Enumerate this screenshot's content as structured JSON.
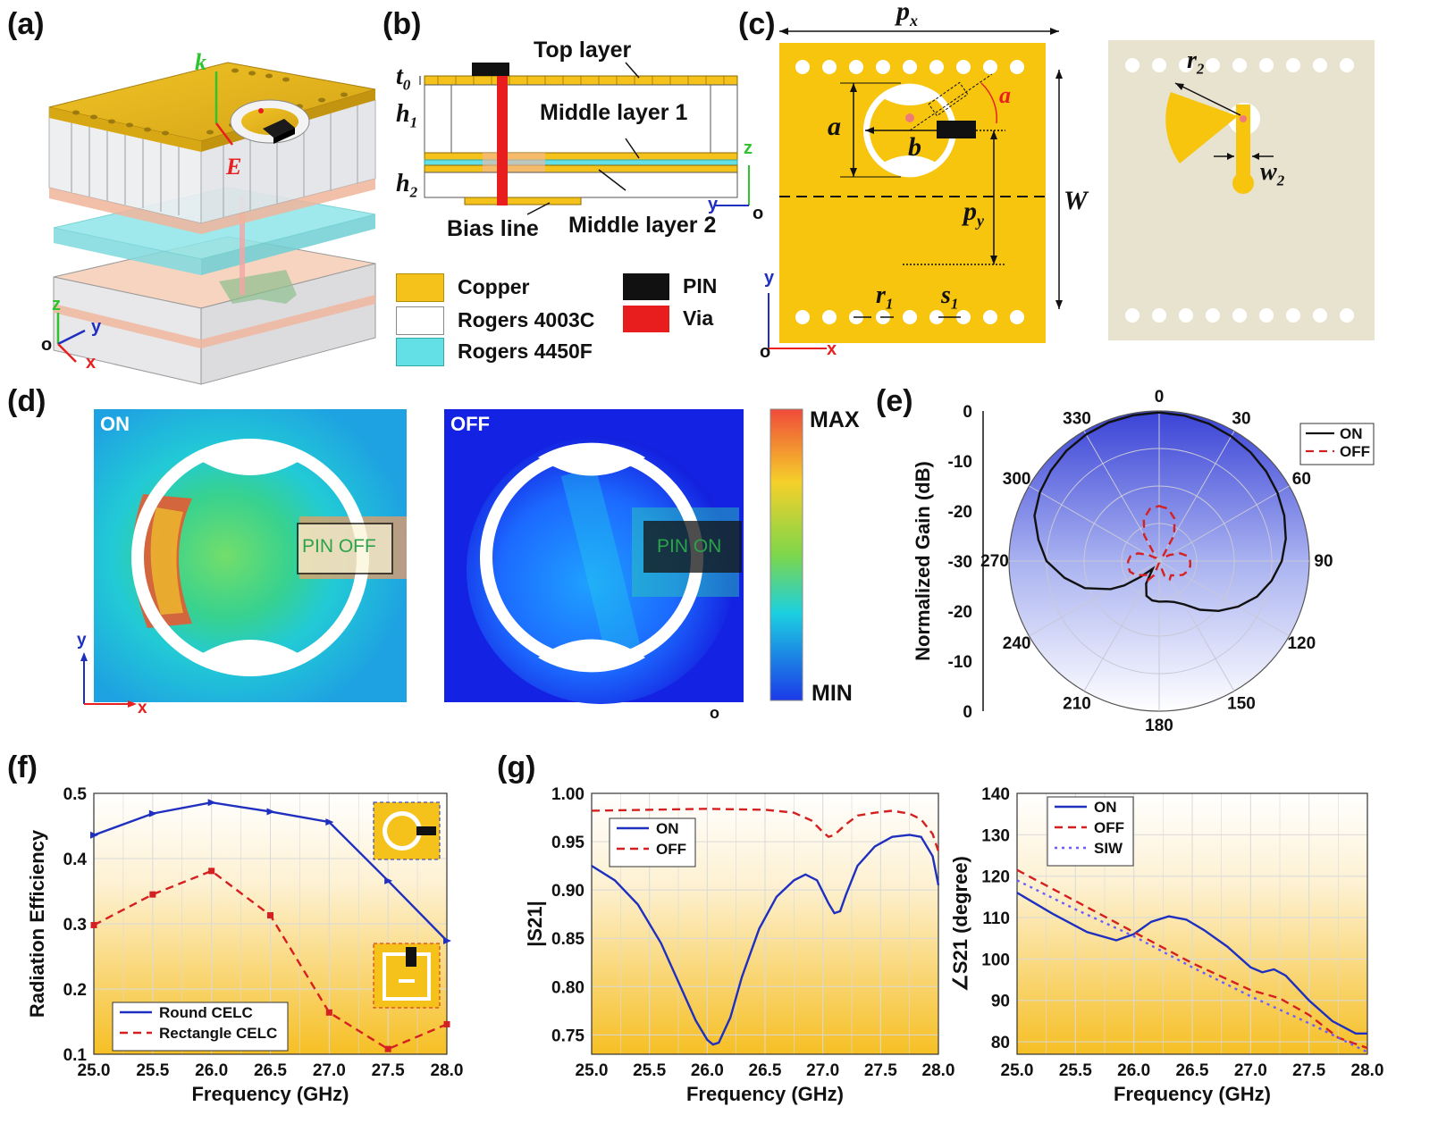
{
  "panels": {
    "a": "(a)",
    "b": "(b)",
    "c": "(c)",
    "d": "(d)",
    "e": "(e)",
    "f": "(f)",
    "g": "(g)"
  },
  "colors": {
    "copper": "#f5c21b",
    "rogers4003c": "#ffffff",
    "rogers4450f": "#63e0e6",
    "pin": "#111111",
    "via": "#e81d1d",
    "blue": "#1f2fbf",
    "red": "#d42020"
  },
  "panel_a": {
    "k": "k",
    "E": "E",
    "axis_z": "z",
    "axis_y": "y",
    "axis_x": "x",
    "origin": "o"
  },
  "panel_b": {
    "top_layer": "Top layer",
    "middle1": "Middle layer 1",
    "middle2": "Middle  layer 2",
    "bias": "Bias line",
    "t0": "t",
    "t0_sub": "0",
    "h1": "h",
    "h1_sub": "1",
    "h2": "h",
    "h2_sub": "2",
    "axis_z": "z",
    "axis_y": "y",
    "origin": "o",
    "legend": [
      {
        "label": "Copper",
        "color": "#f5c21b"
      },
      {
        "label": "Rogers 4003C",
        "color": "#ffffff"
      },
      {
        "label": "Rogers 4450F",
        "color": "#63e0e6"
      },
      {
        "label": "PIN",
        "color": "#111111"
      },
      {
        "label": "Via",
        "color": "#e81d1d"
      }
    ]
  },
  "panel_c": {
    "px": "p",
    "px_sub": "x",
    "py": "p",
    "py_sub": "y",
    "a": "a",
    "b": "b",
    "alpha": "a",
    "W": "W",
    "r1": "r",
    "r1_sub": "1",
    "s1": "s",
    "s1_sub": "1",
    "r2": "r",
    "r2_sub": "2",
    "w2": "w",
    "w2_sub": "2",
    "axis_y": "y",
    "axis_x": "x",
    "origin": "o"
  },
  "panel_d": {
    "on": "ON",
    "off": "OFF",
    "pin_off": "PIN OFF",
    "pin_on": "PIN ON",
    "max": "MAX",
    "min": "MIN",
    "axis_y": "y",
    "axis_x": "x",
    "origin": "o"
  },
  "chart_data": [
    {
      "id": "e",
      "type": "line",
      "coordinate": "polar",
      "ylabel": "Normalized Gain (dB)",
      "radial_ticks_top": [
        "0",
        "-10",
        "-20",
        "-30"
      ],
      "radial_ticks_bottom": [
        "-20",
        "-10",
        "0"
      ],
      "angle_labels": [
        "0",
        "30",
        "60",
        "90",
        "120",
        "150",
        "180",
        "210",
        "240",
        "270",
        "300",
        "330"
      ],
      "rlim_db": [
        -30,
        0
      ],
      "series": [
        {
          "name": "ON",
          "style": "solid",
          "color": "#111111",
          "theta": [
            0,
            10,
            20,
            30,
            40,
            50,
            60,
            70,
            80,
            90,
            100,
            110,
            120,
            130,
            140,
            150,
            160,
            170,
            180,
            190,
            200,
            210,
            220,
            230,
            235,
            240,
            250,
            260,
            270,
            280,
            290,
            300,
            310,
            320,
            330,
            340,
            350
          ],
          "gain_db": [
            -0.3,
            -0.5,
            -0.8,
            -1.2,
            -1.6,
            -2.1,
            -2.7,
            -3.4,
            -4.3,
            -5.5,
            -7.2,
            -9.2,
            -11.8,
            -14.5,
            -17.3,
            -20,
            -21.3,
            -21.8,
            -21.9,
            -22,
            -22.6,
            -24.8,
            -28,
            -25,
            -21.5,
            -18.8,
            -14.2,
            -10.8,
            -7.5,
            -5.5,
            -3.5,
            -2.5,
            -1.8,
            -1.2,
            -0.8,
            -0.5,
            -0.4
          ]
        },
        {
          "name": "OFF",
          "style": "dashed",
          "color": "#d42020",
          "theta": [
            0,
            10,
            20,
            30,
            40,
            50,
            60,
            70,
            80,
            90,
            100,
            110,
            120,
            130,
            140,
            150,
            160,
            170,
            180,
            190,
            200,
            210,
            220,
            230,
            240,
            250,
            260,
            270,
            280,
            290,
            300,
            310,
            320,
            330,
            340,
            350
          ],
          "gain_db": [
            -19,
            -19.4,
            -21,
            -24,
            -29,
            -29,
            -27.5,
            -25.5,
            -24.2,
            -23.8,
            -23.7,
            -24,
            -24.5,
            -25.5,
            -26.3,
            -25.8,
            -26.8,
            -29.5,
            -29.5,
            -29.5,
            -27,
            -25.6,
            -26.4,
            -25.6,
            -24.5,
            -23.8,
            -23.7,
            -23.8,
            -24.2,
            -25.5,
            -27.5,
            -29,
            -29,
            -24,
            -21,
            -19.4
          ]
        }
      ]
    },
    {
      "id": "f",
      "type": "line",
      "xlabel": "Frequency (GHz)",
      "ylabel": "Radiation Efficiency",
      "xlim": [
        25,
        28
      ],
      "ylim": [
        0.1,
        0.5
      ],
      "xticks": [
        "25.0",
        "25.5",
        "26.0",
        "26.5",
        "27.0",
        "27.5",
        "28.0"
      ],
      "yticks": [
        "0.1",
        "0.2",
        "0.3",
        "0.4",
        "0.5"
      ],
      "series": [
        {
          "name": "Round CELC",
          "style": "solid",
          "color": "#1f2fbf",
          "x": [
            25.0,
            25.5,
            26.0,
            26.5,
            27.0,
            27.5,
            28.0
          ],
          "y": [
            0.436,
            0.469,
            0.486,
            0.472,
            0.456,
            0.366,
            0.274
          ]
        },
        {
          "name": "Rectangle CELC",
          "style": "dashed",
          "color": "#d42020",
          "x": [
            25.0,
            25.5,
            26.0,
            26.5,
            27.0,
            27.5,
            28.0
          ],
          "y": [
            0.298,
            0.345,
            0.381,
            0.313,
            0.164,
            0.108,
            0.146
          ]
        }
      ]
    },
    {
      "id": "g1",
      "type": "line",
      "xlabel": "Frequency (GHz)",
      "ylabel": "|S21|",
      "xlim": [
        25,
        28
      ],
      "ylim": [
        0.73,
        1.0
      ],
      "xticks": [
        "25.0",
        "25.5",
        "26.0",
        "26.5",
        "27.0",
        "27.5",
        "28.0"
      ],
      "yticks": [
        "0.75",
        "0.80",
        "0.85",
        "0.90",
        "0.95",
        "1.00"
      ],
      "series": [
        {
          "name": "ON",
          "style": "solid",
          "color": "#1f2fbf",
          "x": [
            25.0,
            25.2,
            25.4,
            25.6,
            25.75,
            25.9,
            26.0,
            26.05,
            26.1,
            26.2,
            26.3,
            26.45,
            26.6,
            26.75,
            26.85,
            26.95,
            27.05,
            27.1,
            27.15,
            27.2,
            27.3,
            27.45,
            27.6,
            27.75,
            27.85,
            27.95,
            28.0
          ],
          "y": [
            0.925,
            0.91,
            0.885,
            0.845,
            0.805,
            0.765,
            0.745,
            0.74,
            0.742,
            0.768,
            0.81,
            0.86,
            0.893,
            0.91,
            0.916,
            0.91,
            0.886,
            0.876,
            0.878,
            0.895,
            0.925,
            0.945,
            0.955,
            0.957,
            0.955,
            0.935,
            0.905
          ]
        },
        {
          "name": "OFF",
          "style": "dashed",
          "color": "#d42020",
          "x": [
            25.0,
            25.5,
            26.0,
            26.5,
            26.75,
            26.9,
            27.0,
            27.05,
            27.1,
            27.2,
            27.3,
            27.45,
            27.6,
            27.75,
            27.85,
            27.95,
            28.0
          ],
          "y": [
            0.982,
            0.983,
            0.984,
            0.983,
            0.98,
            0.972,
            0.96,
            0.955,
            0.957,
            0.968,
            0.977,
            0.98,
            0.982,
            0.979,
            0.973,
            0.958,
            0.94
          ]
        }
      ]
    },
    {
      "id": "g2",
      "type": "line",
      "xlabel": "Frequency (GHz)",
      "ylabel": "∠S21 (degree)",
      "xlim": [
        25,
        28
      ],
      "ylim": [
        77,
        140
      ],
      "xticks": [
        "25.0",
        "25.5",
        "26.0",
        "26.5",
        "27.0",
        "27.5",
        "28.0"
      ],
      "yticks": [
        "80",
        "90",
        "100",
        "110",
        "120",
        "130",
        "140"
      ],
      "series": [
        {
          "name": "ON",
          "style": "solid",
          "color": "#1f2fbf",
          "x": [
            25.0,
            25.3,
            25.6,
            25.85,
            26.0,
            26.15,
            26.3,
            26.45,
            26.6,
            26.8,
            27.0,
            27.1,
            27.2,
            27.3,
            27.5,
            27.7,
            27.9,
            28.0
          ],
          "y": [
            116,
            111,
            106.5,
            104.5,
            106,
            109,
            110.3,
            109.5,
            107,
            103,
            98,
            96.8,
            97.5,
            96,
            90,
            85,
            82,
            82
          ]
        },
        {
          "name": "OFF",
          "style": "dashed",
          "color": "#d42020",
          "x": [
            25.0,
            25.5,
            26.0,
            26.5,
            27.0,
            27.25,
            27.5,
            27.75,
            28.0
          ],
          "y": [
            121.5,
            114,
            106.5,
            99,
            92.5,
            90.5,
            86.5,
            81,
            78.5
          ]
        },
        {
          "name": "SIW",
          "style": "dotted",
          "color": "#6a5cff",
          "x": [
            25.0,
            25.5,
            26.0,
            26.5,
            27.0,
            27.5,
            28.0
          ],
          "y": [
            119,
            112,
            105.5,
            98,
            91,
            84.5,
            77.5
          ]
        }
      ]
    }
  ]
}
